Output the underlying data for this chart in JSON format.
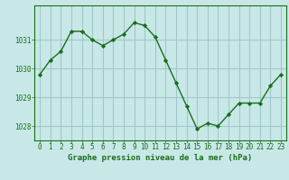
{
  "x": [
    0,
    1,
    2,
    3,
    4,
    5,
    6,
    7,
    8,
    9,
    10,
    11,
    12,
    13,
    14,
    15,
    16,
    17,
    18,
    19,
    20,
    21,
    22,
    23
  ],
  "y": [
    1029.8,
    1030.3,
    1030.6,
    1031.3,
    1031.3,
    1031.0,
    1030.8,
    1031.0,
    1031.2,
    1031.6,
    1031.5,
    1031.1,
    1030.3,
    1029.5,
    1028.7,
    1027.9,
    1028.1,
    1028.0,
    1028.4,
    1028.8,
    1028.8,
    1028.8,
    1029.4,
    1029.8
  ],
  "line_color": "#1a6e1a",
  "marker_color": "#1a6e1a",
  "bg_color": "#c8e8e8",
  "grid_color": "#a0c8c8",
  "axis_label_color": "#1a6e1a",
  "tick_color": "#1a6e1a",
  "xlabel": "Graphe pression niveau de la mer (hPa)",
  "ylim": [
    1027.5,
    1032.2
  ],
  "yticks": [
    1028,
    1029,
    1030,
    1031
  ],
  "xlim": [
    -0.5,
    23.5
  ],
  "xticks": [
    0,
    1,
    2,
    3,
    4,
    5,
    6,
    7,
    8,
    9,
    10,
    11,
    12,
    13,
    14,
    15,
    16,
    17,
    18,
    19,
    20,
    21,
    22,
    23
  ],
  "tick_fontsize": 5.5,
  "xlabel_fontsize": 6.5
}
